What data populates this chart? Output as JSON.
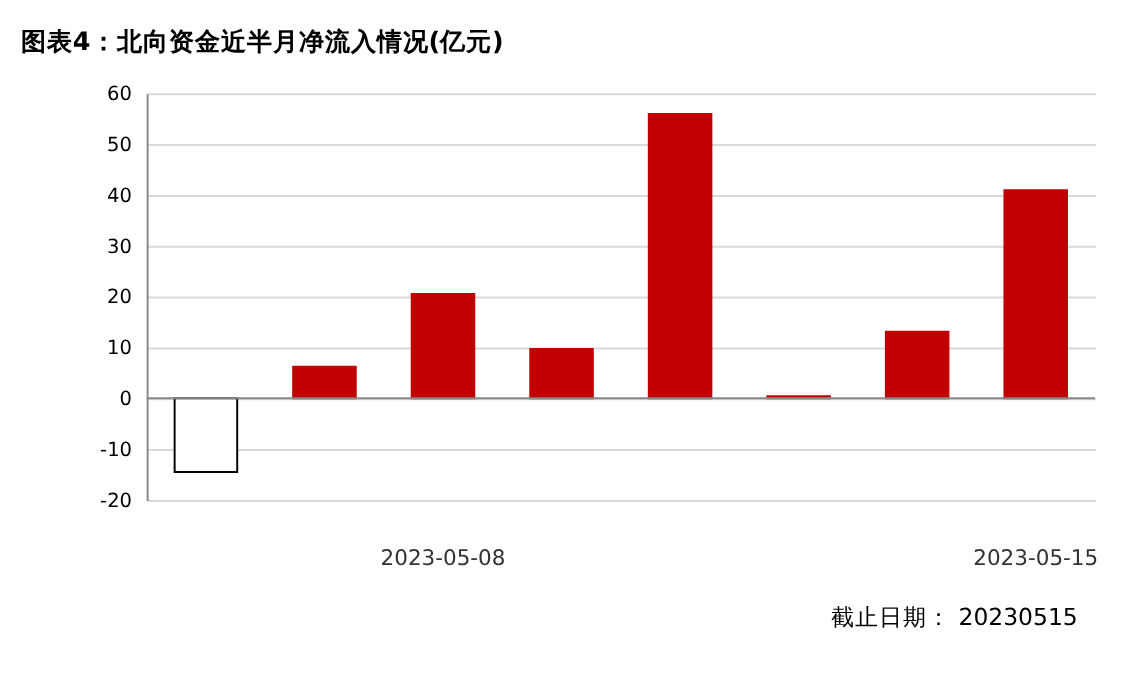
{
  "chart_data": {
    "type": "bar",
    "title": "图表4：北向资金近半月净流入情况(亿元)",
    "categories": [
      null,
      null,
      "2023-05-08",
      null,
      null,
      null,
      null,
      "2023-05-15"
    ],
    "values": [
      -14.5,
      6.2,
      20.5,
      9.7,
      55.9,
      0.4,
      13.1,
      40.9
    ],
    "colors": [
      "#ffffff",
      "#c00000",
      "#c00000",
      "#c00000",
      "#c00000",
      "#c00000",
      "#c00000",
      "#c00000"
    ],
    "ylim": [
      -20,
      60
    ],
    "yticks": [
      -20,
      -10,
      0,
      10,
      20,
      30,
      40,
      50,
      60
    ],
    "grid": "y",
    "annotations": [
      "截止日期： 20230515"
    ]
  }
}
